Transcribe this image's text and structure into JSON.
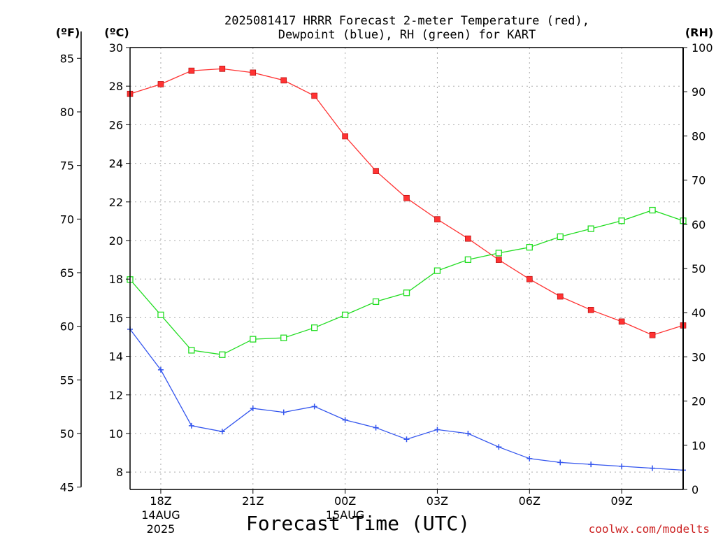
{
  "title_line1": "2025081417 HRRR Forecast 2-meter Temperature (red),",
  "title_line2": "Dewpoint (blue), RH (green) for KART",
  "units": {
    "fahrenheit": "(ºF)",
    "celsius": "(ºC)",
    "rh": "(RH)"
  },
  "xlabel": "Forecast Time (UTC)",
  "credit": "coolwx.com/modelts",
  "chart_data": {
    "type": "line",
    "x_hours": [
      17,
      18,
      19,
      20,
      21,
      22,
      23,
      24,
      25,
      26,
      27,
      28,
      29,
      30,
      31,
      32,
      33,
      34,
      35
    ],
    "xlim": [
      17,
      35
    ],
    "x_ticks": [
      {
        "hour": 18,
        "label": "18Z",
        "sub1": "14AUG",
        "sub2": "2025"
      },
      {
        "hour": 21,
        "label": "21Z",
        "sub1": "",
        "sub2": ""
      },
      {
        "hour": 24,
        "label": "00Z",
        "sub1": "15AUG",
        "sub2": ""
      },
      {
        "hour": 27,
        "label": "03Z",
        "sub1": "",
        "sub2": ""
      },
      {
        "hour": 30,
        "label": "06Z",
        "sub1": "",
        "sub2": ""
      },
      {
        "hour": 33,
        "label": "09Z",
        "sub1": "",
        "sub2": ""
      }
    ],
    "celsius_axis": {
      "range": [
        7.1,
        30
      ],
      "ticks": [
        8,
        10,
        12,
        14,
        16,
        18,
        20,
        22,
        24,
        26,
        28,
        30
      ]
    },
    "fahrenheit_axis": {
      "ticks": [
        45,
        50,
        55,
        60,
        65,
        70,
        75,
        80,
        85
      ]
    },
    "rh_axis": {
      "range": [
        0,
        100
      ],
      "ticks": [
        0,
        10,
        20,
        30,
        40,
        50,
        60,
        70,
        80,
        90,
        100
      ]
    },
    "grid": true,
    "series": [
      {
        "name": "Temperature (red)",
        "axis": "celsius",
        "color": "#ff3333",
        "marker": "filled-square",
        "values": [
          27.6,
          28.1,
          28.8,
          28.9,
          28.7,
          28.3,
          27.5,
          25.4,
          23.6,
          22.2,
          21.1,
          20.1,
          19.0,
          18.0,
          17.1,
          16.4,
          15.8,
          15.1,
          15.6
        ]
      },
      {
        "name": "Dewpoint (blue)",
        "axis": "celsius",
        "color": "#3355ee",
        "marker": "plus",
        "values": [
          15.4,
          13.3,
          10.4,
          10.1,
          11.3,
          11.1,
          11.4,
          10.7,
          10.3,
          9.7,
          10.2,
          10.0,
          9.3,
          8.7,
          8.5,
          8.4,
          8.3,
          8.2,
          8.1
        ]
      },
      {
        "name": "RH (green)",
        "axis": "rh",
        "color": "#22dd22",
        "marker": "open-square",
        "values": [
          47.5,
          39.5,
          31.5,
          30.5,
          34.0,
          34.3,
          36.6,
          39.5,
          42.5,
          44.5,
          49.5,
          52.0,
          53.5,
          54.8,
          57.2,
          59.0,
          60.8,
          63.2,
          60.8
        ]
      }
    ]
  }
}
